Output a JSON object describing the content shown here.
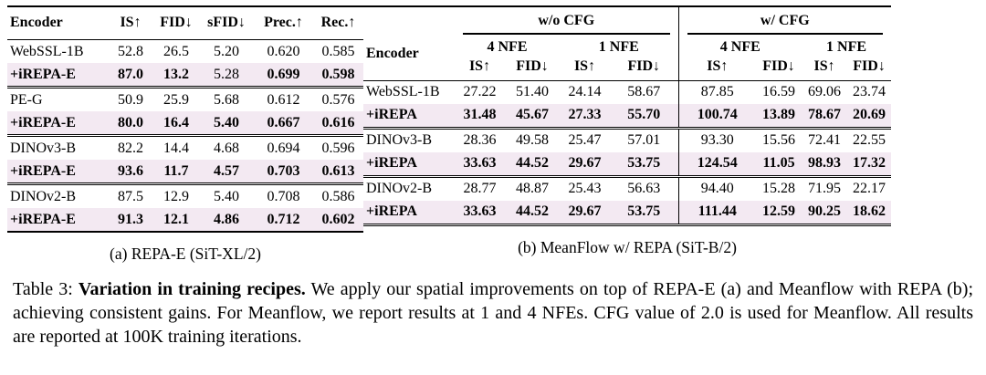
{
  "colors": {
    "row_highlight": "#f3e9f2",
    "rule": "#000000",
    "text": "#000000"
  },
  "panel_a": {
    "caption": "(a) REPA-E (SiT-XL/2)",
    "columns": [
      "Encoder",
      "IS↑",
      "FID↓",
      "sFID↓",
      "Prec.↑",
      "Rec.↑"
    ],
    "groups": [
      [
        {
          "name": "WebSSL-1B",
          "bold": false,
          "highlight": false,
          "values": [
            "52.8",
            "26.5",
            "5.20",
            "0.620",
            "0.585"
          ]
        },
        {
          "name": "+iREPA-E",
          "bold": true,
          "highlight": true,
          "regular_cells": [
            2
          ],
          "values": [
            "87.0",
            "13.2",
            "5.28",
            "0.699",
            "0.598"
          ]
        }
      ],
      [
        {
          "name": "PE-G",
          "bold": false,
          "highlight": false,
          "values": [
            "50.9",
            "25.9",
            "5.68",
            "0.612",
            "0.576"
          ]
        },
        {
          "name": "+iREPA-E",
          "bold": true,
          "highlight": true,
          "values": [
            "80.0",
            "16.4",
            "5.40",
            "0.667",
            "0.616"
          ]
        }
      ],
      [
        {
          "name": "DINOv3-B",
          "bold": false,
          "highlight": false,
          "values": [
            "82.2",
            "14.4",
            "4.68",
            "0.694",
            "0.596"
          ]
        },
        {
          "name": "+iREPA-E",
          "bold": true,
          "highlight": true,
          "values": [
            "93.6",
            "11.7",
            "4.57",
            "0.703",
            "0.613"
          ]
        }
      ],
      [
        {
          "name": "DINOv2-B",
          "bold": false,
          "highlight": false,
          "values": [
            "87.5",
            "12.9",
            "5.40",
            "0.708",
            "0.586"
          ]
        },
        {
          "name": "+iREPA-E",
          "bold": true,
          "highlight": true,
          "values": [
            "91.3",
            "12.1",
            "4.86",
            "0.712",
            "0.602"
          ]
        }
      ]
    ]
  },
  "panel_b": {
    "caption": "(b) MeanFlow w/ REPA (SiT-B/2)",
    "header": {
      "encoder": "Encoder",
      "cfg_groups": [
        "w/o CFG",
        "w/ CFG"
      ],
      "nfe_groups": [
        "4 NFE",
        "1 NFE",
        "4 NFE",
        "1 NFE"
      ],
      "metrics": [
        "IS↑",
        "FID↓",
        "IS↑",
        "FID↓",
        "IS↑",
        "FID↓",
        "IS↑",
        "FID↓"
      ]
    },
    "groups": [
      [
        {
          "name": "WebSSL-1B",
          "bold": false,
          "highlight": false,
          "values": [
            "27.22",
            "51.40",
            "24.14",
            "58.67",
            "87.85",
            "16.59",
            "69.06",
            "23.74"
          ]
        },
        {
          "name": "+iREPA",
          "bold": true,
          "highlight": true,
          "values": [
            "31.48",
            "45.67",
            "27.33",
            "55.70",
            "100.74",
            "13.89",
            "78.67",
            "20.69"
          ]
        }
      ],
      [
        {
          "name": "DINOv3-B",
          "bold": false,
          "highlight": false,
          "values": [
            "28.36",
            "49.58",
            "25.47",
            "57.01",
            "93.30",
            "15.56",
            "72.41",
            "22.55"
          ]
        },
        {
          "name": "+iREPA",
          "bold": true,
          "highlight": true,
          "values": [
            "33.63",
            "44.52",
            "29.67",
            "53.75",
            "124.54",
            "11.05",
            "98.93",
            "17.32"
          ]
        }
      ],
      [
        {
          "name": "DINOv2-B",
          "bold": false,
          "highlight": false,
          "values": [
            "28.77",
            "48.87",
            "25.43",
            "56.63",
            "94.40",
            "15.28",
            "71.95",
            "22.17"
          ]
        },
        {
          "name": "+iREPA",
          "bold": true,
          "highlight": true,
          "values": [
            "33.63",
            "44.52",
            "29.67",
            "53.75",
            "111.44",
            "12.59",
            "90.25",
            "18.62"
          ]
        }
      ]
    ]
  },
  "main_caption": {
    "prefix": "Table 3:",
    "bold": "Variation in training recipes.",
    "rest": "We apply our spatial improvements on top of REPA-E (a) and Meanflow with REPA (b); achieving consistent gains. For Meanflow, we report results at 1 and 4 NFEs. CFG value of 2.0 is used for Meanflow. All results are reported at 100K training iterations."
  }
}
